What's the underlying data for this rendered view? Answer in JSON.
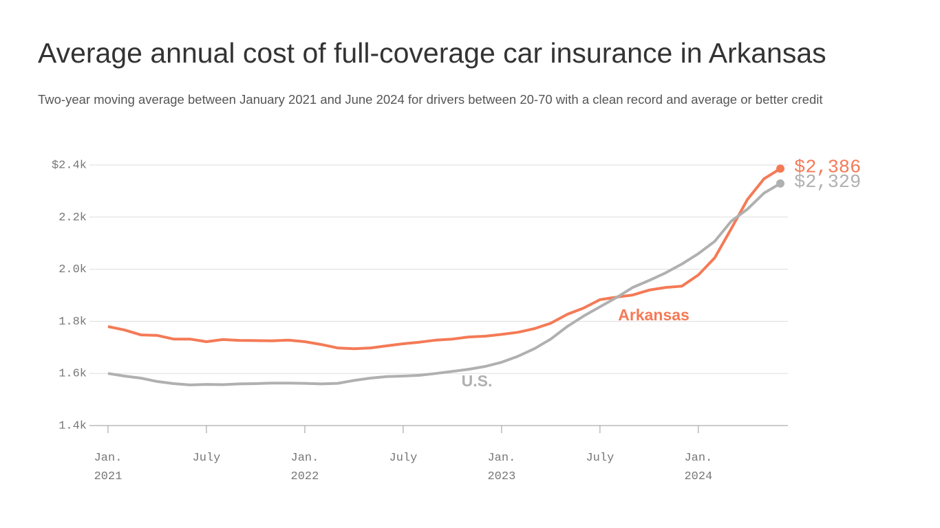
{
  "chart_data": {
    "type": "line",
    "title": "Average annual cost of full-coverage car insurance in Arkansas",
    "subtitle": "Two-year moving average between January 2021 and June 2024 for drivers between 20-70 with a clean record and average or better credit",
    "x": [
      "2021-01",
      "2021-02",
      "2021-03",
      "2021-04",
      "2021-05",
      "2021-06",
      "2021-07",
      "2021-08",
      "2021-09",
      "2021-10",
      "2021-11",
      "2021-12",
      "2022-01",
      "2022-02",
      "2022-03",
      "2022-04",
      "2022-05",
      "2022-06",
      "2022-07",
      "2022-08",
      "2022-09",
      "2022-10",
      "2022-11",
      "2022-12",
      "2023-01",
      "2023-02",
      "2023-03",
      "2023-04",
      "2023-05",
      "2023-06",
      "2023-07",
      "2023-08",
      "2023-09",
      "2023-10",
      "2023-11",
      "2023-12",
      "2024-01",
      "2024-02",
      "2024-03",
      "2024-04",
      "2024-05",
      "2024-06"
    ],
    "series": [
      {
        "name": "Arkansas",
        "color": "#f47a56",
        "values": [
          1780,
          1767,
          1748,
          1746,
          1732,
          1732,
          1722,
          1730,
          1727,
          1726,
          1725,
          1728,
          1722,
          1711,
          1698,
          1695,
          1698,
          1706,
          1714,
          1720,
          1728,
          1732,
          1740,
          1743,
          1750,
          1758,
          1772,
          1793,
          1827,
          1851,
          1883,
          1893,
          1901,
          1920,
          1930,
          1935,
          1978,
          2044,
          2155,
          2268,
          2347,
          2386
        ],
        "value_labels": [
          null,
          null,
          null,
          null,
          null,
          null,
          null,
          null,
          null,
          null,
          null,
          null,
          null,
          null,
          null,
          null,
          null,
          null,
          null,
          null,
          null,
          null,
          null,
          null,
          null,
          null,
          null,
          null,
          null,
          null,
          null,
          null,
          null,
          null,
          null,
          null,
          null,
          null,
          null,
          null,
          null,
          "$2,386"
        ]
      },
      {
        "name": "U.S.",
        "color": "#b0b0b0",
        "values": [
          1600,
          1590,
          1582,
          1569,
          1561,
          1556,
          1558,
          1557,
          1560,
          1561,
          1563,
          1563,
          1562,
          1560,
          1562,
          1573,
          1582,
          1588,
          1590,
          1593,
          1600,
          1608,
          1616,
          1627,
          1643,
          1666,
          1695,
          1732,
          1780,
          1820,
          1856,
          1891,
          1930,
          1957,
          1986,
          2020,
          2060,
          2107,
          2184,
          2231,
          2292,
          2329
        ],
        "value_labels": [
          null,
          null,
          null,
          null,
          null,
          null,
          null,
          null,
          null,
          null,
          null,
          null,
          null,
          null,
          null,
          null,
          null,
          null,
          null,
          null,
          null,
          null,
          null,
          null,
          null,
          null,
          null,
          null,
          null,
          null,
          null,
          null,
          null,
          null,
          null,
          null,
          null,
          null,
          null,
          null,
          null,
          "$2,329"
        ]
      }
    ],
    "ylim": [
      1400,
      2400
    ],
    "yticks": [
      {
        "value": 1400,
        "label": "1.4k"
      },
      {
        "value": 1600,
        "label": "1.6k"
      },
      {
        "value": 1800,
        "label": "1.8k"
      },
      {
        "value": 2000,
        "label": "2.0k"
      },
      {
        "value": 2200,
        "label": "2.2k"
      },
      {
        "value": 2400,
        "label": "$2.4k"
      }
    ],
    "xticks": [
      {
        "value": "2021-01",
        "label": "Jan. 2021"
      },
      {
        "value": "2021-07",
        "label": "July"
      },
      {
        "value": "2022-01",
        "label": "Jan. 2022"
      },
      {
        "value": "2022-07",
        "label": "July"
      },
      {
        "value": "2023-01",
        "label": "Jan. 2023"
      },
      {
        "value": "2023-07",
        "label": "July"
      },
      {
        "value": "2024-01",
        "label": "Jan. 2024"
      }
    ],
    "grid": true
  }
}
